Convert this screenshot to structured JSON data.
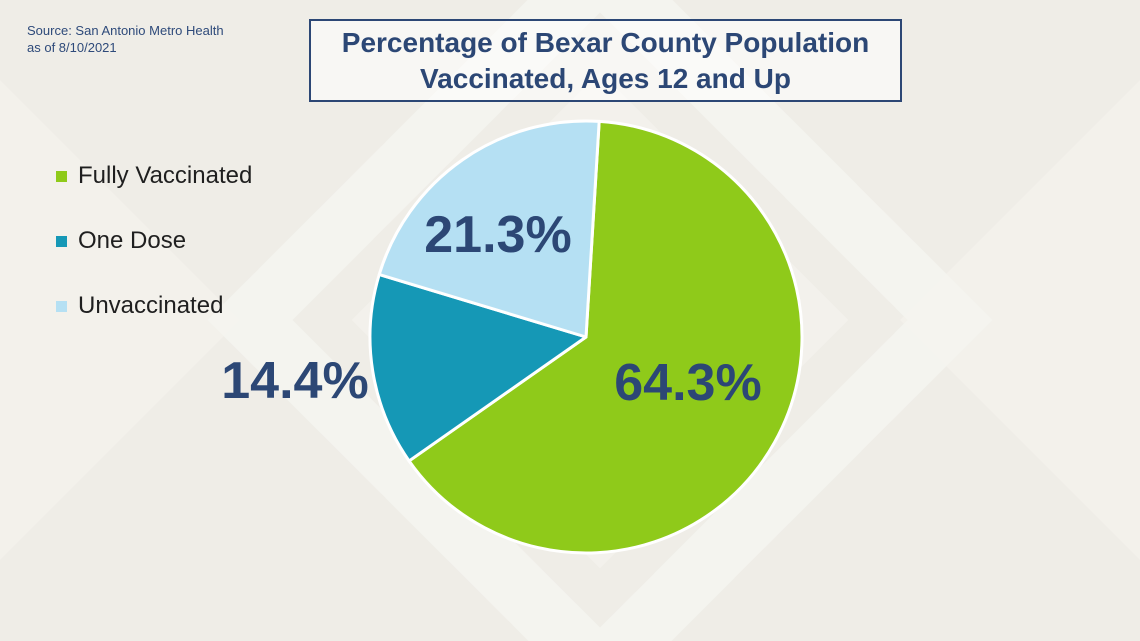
{
  "source": {
    "line1": "Source: San Antonio Metro Health",
    "line2": "as of 8/10/2021"
  },
  "chart_data": {
    "type": "pie",
    "title_line1": "Percentage of Bexar County Population",
    "title_line2": "Vaccinated, Ages 12 and Up",
    "legend_position": "left",
    "slices": [
      {
        "name": "Fully Vaccinated",
        "value": 64.3,
        "label": "64.3%",
        "color": "#8fca1a"
      },
      {
        "name": "One Dose",
        "value": 14.4,
        "label": "14.4%",
        "color": "#1598b6"
      },
      {
        "name": "Unvaccinated",
        "value": 21.3,
        "label": "21.3%",
        "color": "#b5e0f3"
      }
    ]
  },
  "colors": {
    "title": "#2c4775",
    "background": "#efede7"
  }
}
